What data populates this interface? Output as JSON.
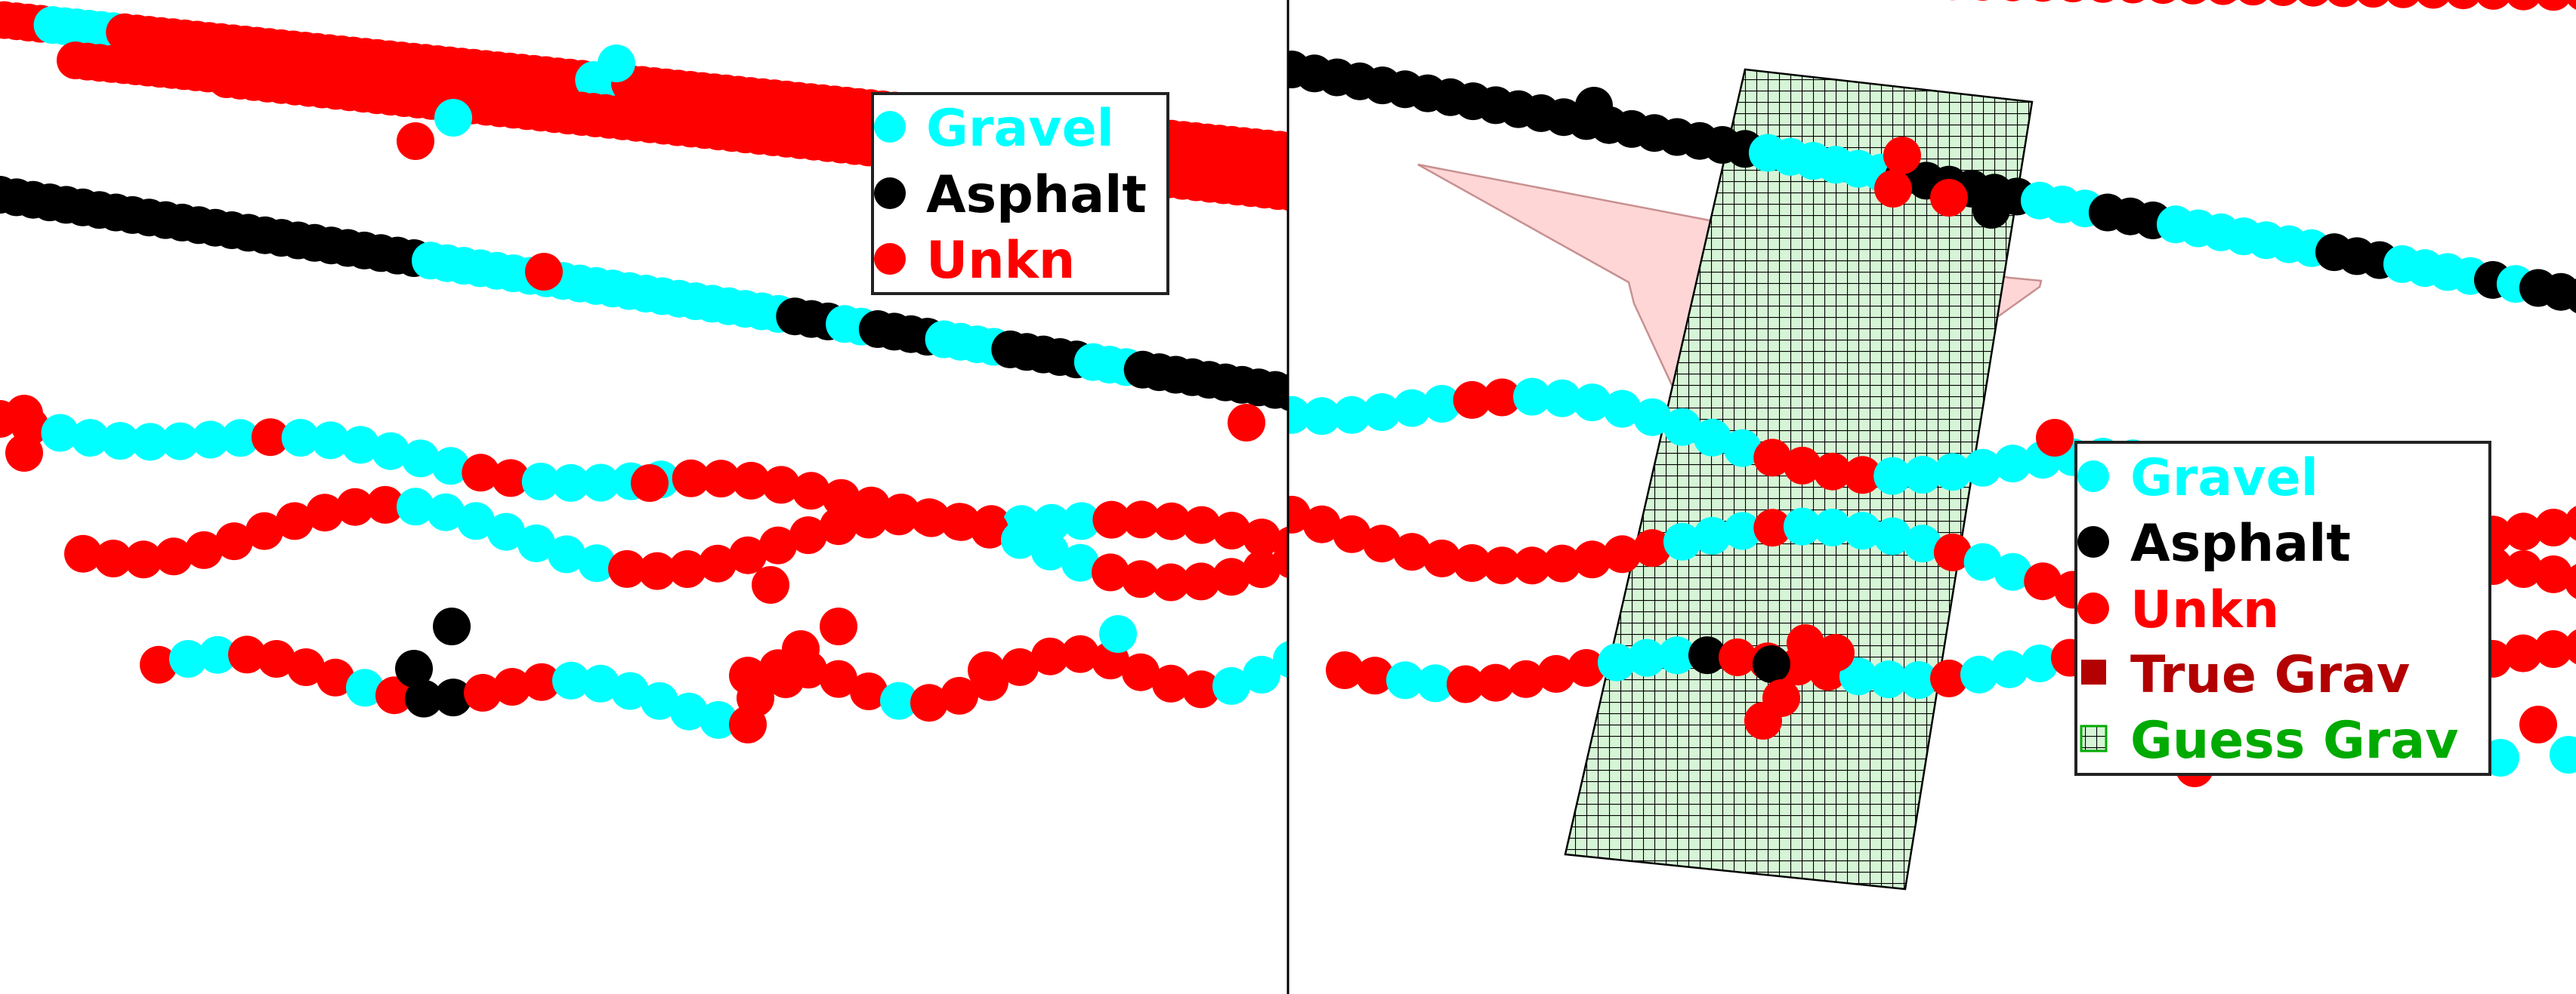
{
  "colors": {
    "gravel": "#00ffff",
    "asphalt": "#000000",
    "unkn": "#ff0000",
    "true_grav": "#b30000",
    "guess_grav": "#00aa00",
    "guess_fill": "#d6f5d6",
    "true_fill": "#ffd6d6",
    "divider": "#000000"
  },
  "chart_data": [
    {
      "type": "scatter",
      "panel": "left",
      "legend": {
        "placement": "top-right",
        "entries": [
          {
            "label": "Gravel",
            "marker": "circle",
            "color": "#00ffff"
          },
          {
            "label": "Asphalt",
            "marker": "circle",
            "color": "#000000"
          },
          {
            "label": "Unkn",
            "marker": "circle",
            "color": "#ff0000"
          }
        ]
      },
      "grid": false,
      "axes_visible": false
    },
    {
      "type": "scatter",
      "panel": "right",
      "legend": {
        "placement": "center-right",
        "entries": [
          {
            "label": "Gravel",
            "marker": "circle",
            "color": "#00ffff"
          },
          {
            "label": "Asphalt",
            "marker": "circle",
            "color": "#000000"
          },
          {
            "label": "Unkn",
            "marker": "circle",
            "color": "#ff0000"
          },
          {
            "label": "True Grav",
            "marker": "square",
            "color": "#b30000"
          },
          {
            "label": "Guess Grav",
            "marker": "hatched-square",
            "color": "#00aa00"
          }
        ]
      },
      "regions": [
        {
          "name": "True Grav",
          "shape": "polygon"
        },
        {
          "name": "Guess Grav",
          "shape": "hatched-polygon"
        }
      ],
      "grid": false,
      "axes_visible": false
    }
  ]
}
